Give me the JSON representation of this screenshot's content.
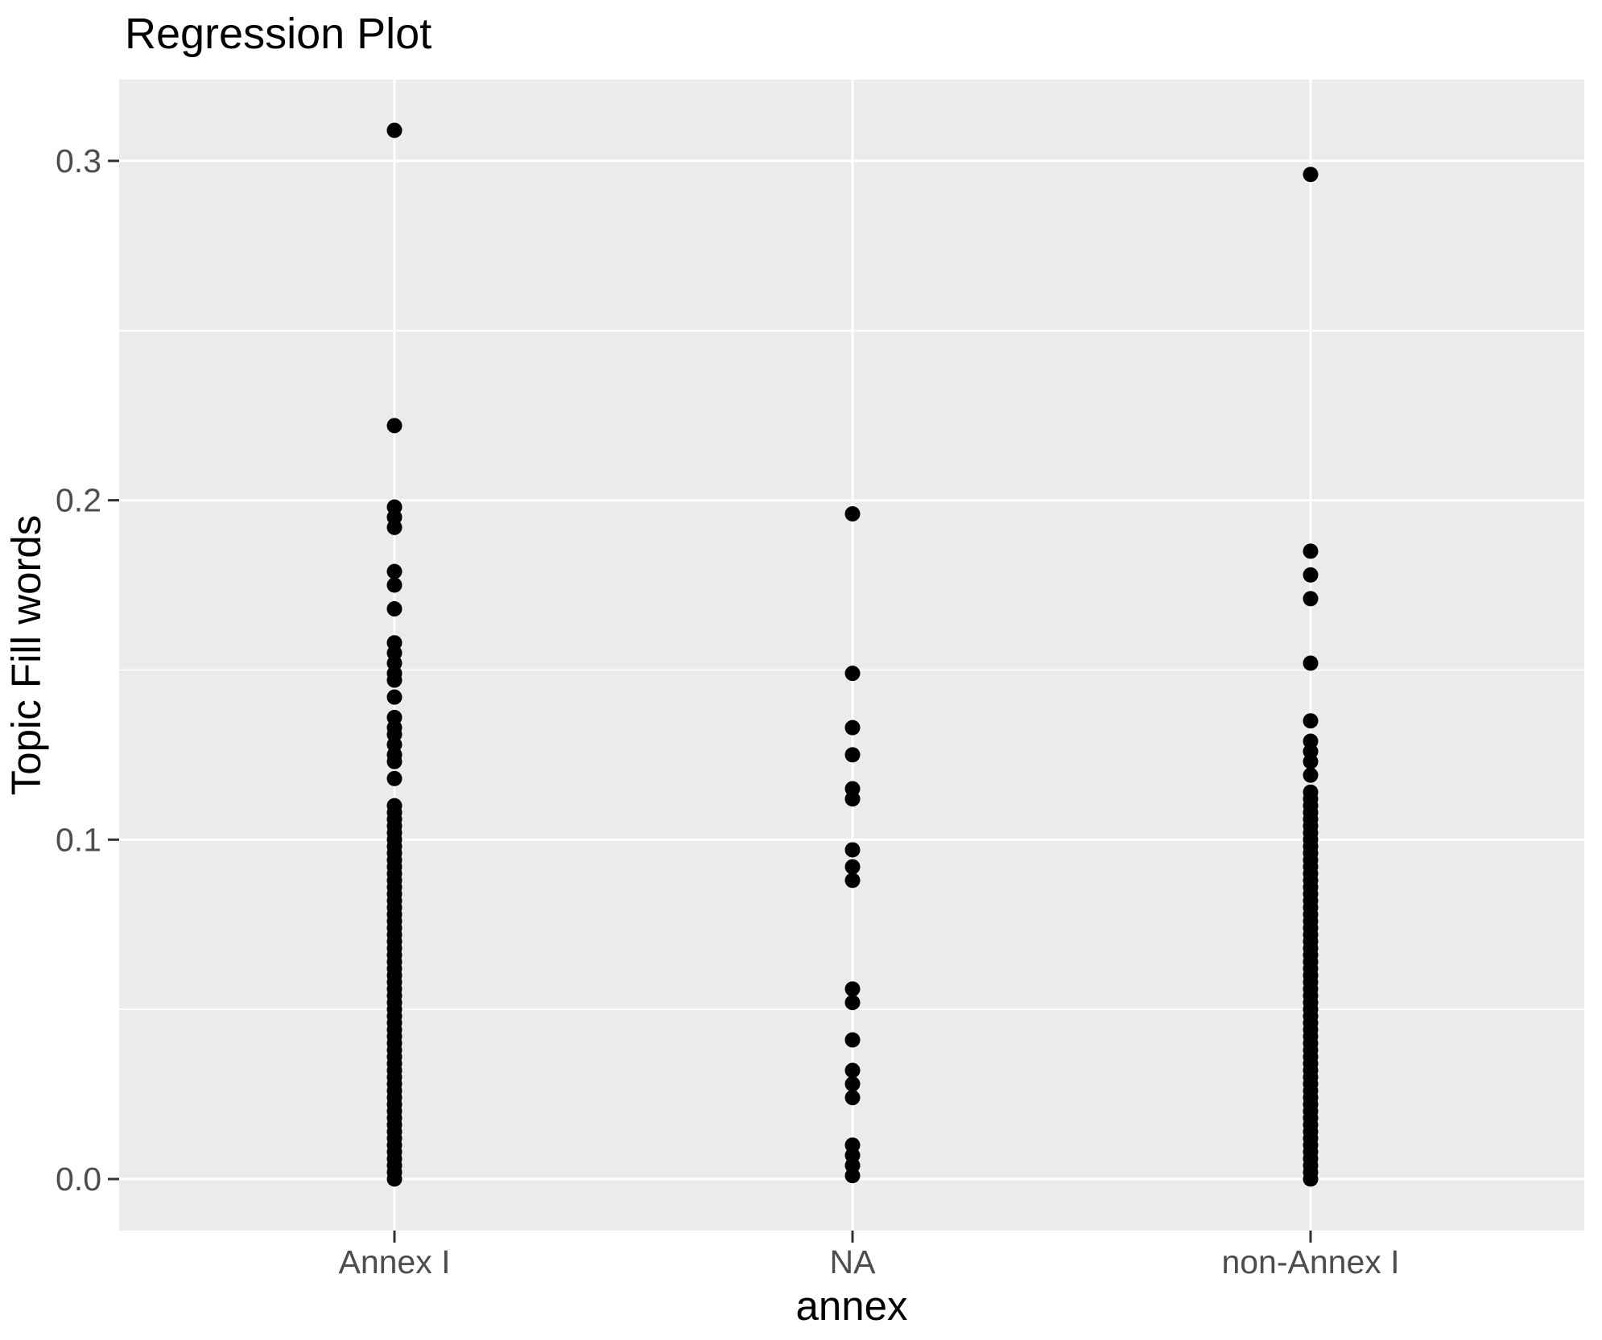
{
  "title": "Regression Plot",
  "axes": {
    "y": {
      "label": "Topic Fill words",
      "tick_labels": [
        "0.0",
        "0.1",
        "0.2",
        "0.3"
      ]
    },
    "x": {
      "label": "annex",
      "tick_labels": [
        "Annex I",
        "NA",
        "non-Annex I"
      ]
    }
  },
  "colors": {
    "panel_background": "#EBEBEB",
    "gridline": "#FFFFFF",
    "tick_mark": "#333333",
    "tick_text": "#4D4D4D",
    "point": "#000000",
    "title_text": "#000000",
    "page_background": "#FFFFFF"
  },
  "chart_data": {
    "type": "scatter",
    "title": "Regression Plot",
    "xlabel": "annex",
    "ylabel": "Topic Fill words",
    "categories": [
      "Annex I",
      "NA",
      "non-Annex I"
    ],
    "yticks": [
      0.0,
      0.1,
      0.2,
      0.3
    ],
    "ytick_labels": [
      "0.0",
      "0.1",
      "0.2",
      "0.3"
    ],
    "minor_yticks": [
      0.05,
      0.15,
      0.25
    ],
    "ylim": [
      -0.0155,
      0.3245
    ],
    "grid": "white major and minor horizontal lines plus major vertical lines on grey panel",
    "legend_position": "none",
    "point_style": {
      "shape": "circle",
      "color": "#000000",
      "radius_px": 9.5
    },
    "series": [
      {
        "name": "Annex I",
        "values": [
          0.309,
          0.222,
          0.198,
          0.195,
          0.192,
          0.179,
          0.175,
          0.168,
          0.158,
          0.155,
          0.152,
          0.149,
          0.147,
          0.142,
          0.136,
          0.133,
          0.131,
          0.128,
          0.125,
          0.123,
          0.118,
          0.11,
          0.108,
          0.106,
          0.104,
          0.102,
          0.1,
          0.098,
          0.096,
          0.094,
          0.092,
          0.09,
          0.088,
          0.086,
          0.084,
          0.082,
          0.08,
          0.078,
          0.076,
          0.074,
          0.072,
          0.07,
          0.068,
          0.066,
          0.064,
          0.062,
          0.06,
          0.058,
          0.056,
          0.054,
          0.052,
          0.05,
          0.048,
          0.046,
          0.044,
          0.042,
          0.04,
          0.038,
          0.036,
          0.034,
          0.032,
          0.03,
          0.028,
          0.026,
          0.024,
          0.022,
          0.02,
          0.018,
          0.016,
          0.014,
          0.012,
          0.01,
          0.008,
          0.006,
          0.004,
          0.002,
          0
        ]
      },
      {
        "name": "NA",
        "values": [
          0.196,
          0.149,
          0.133,
          0.125,
          0.115,
          0.112,
          0.097,
          0.092,
          0.088,
          0.056,
          0.052,
          0.041,
          0.032,
          0.028,
          0.024,
          0.01,
          0.007,
          0.004,
          0.001
        ]
      },
      {
        "name": "non-Annex I",
        "values": [
          0.296,
          0.185,
          0.178,
          0.171,
          0.152,
          0.135,
          0.129,
          0.126,
          0.123,
          0.119,
          0.114,
          0.112,
          0.11,
          0.108,
          0.106,
          0.104,
          0.102,
          0.1,
          0.098,
          0.096,
          0.094,
          0.092,
          0.09,
          0.088,
          0.086,
          0.084,
          0.082,
          0.08,
          0.078,
          0.076,
          0.074,
          0.072,
          0.07,
          0.068,
          0.066,
          0.064,
          0.062,
          0.06,
          0.058,
          0.056,
          0.054,
          0.052,
          0.05,
          0.048,
          0.046,
          0.044,
          0.042,
          0.04,
          0.038,
          0.036,
          0.034,
          0.032,
          0.03,
          0.028,
          0.026,
          0.024,
          0.022,
          0.02,
          0.018,
          0.016,
          0.014,
          0.012,
          0.01,
          0.008,
          0.006,
          0.004,
          0.002,
          0
        ]
      }
    ]
  }
}
